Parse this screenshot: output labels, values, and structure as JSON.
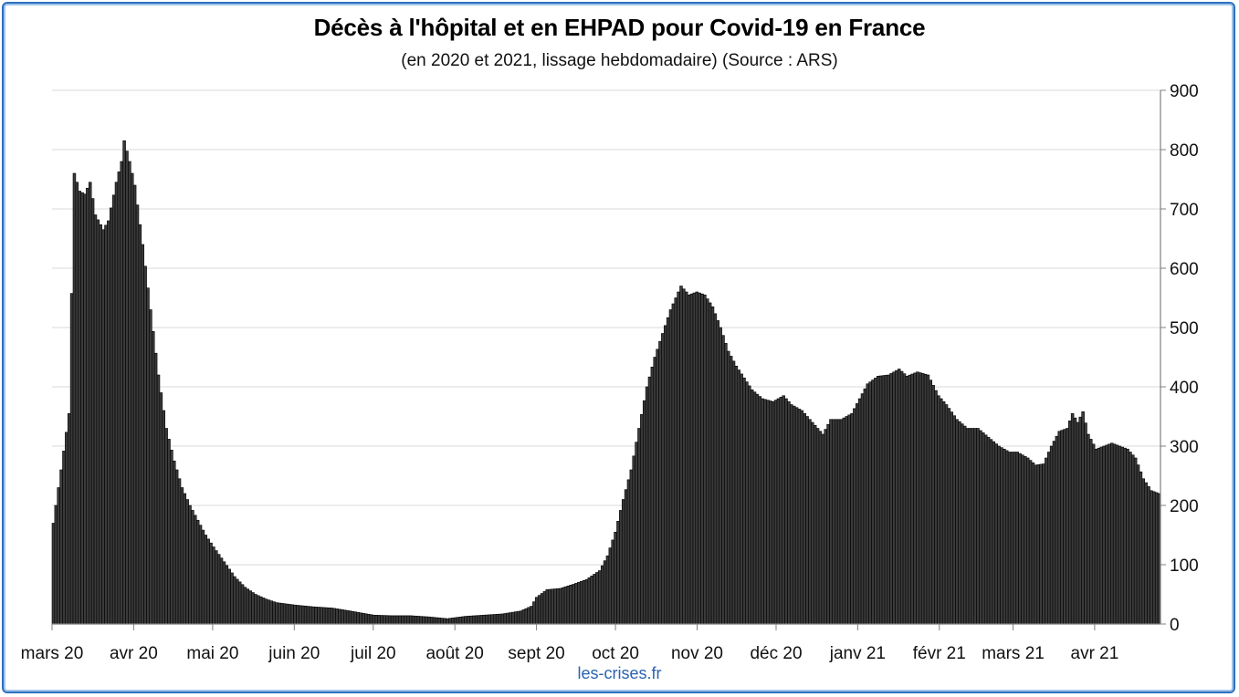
{
  "chart_data": {
    "type": "bar",
    "title": "Décès à l'hôpital et en EHPAD pour Covid-19 en France",
    "subtitle": "(en 2020 et 2021, lissage hebdomadaire) (Source : ARS)",
    "xlabel": "",
    "ylabel": "",
    "ylim": [
      0,
      900
    ],
    "yticks": [
      0,
      100,
      200,
      300,
      400,
      500,
      600,
      700,
      800,
      900
    ],
    "y_axis_side": "right",
    "grid": true,
    "legend": "none",
    "bar_color": "#3a3a3a",
    "x_start": "2020-03-01",
    "x_end": "2021-04-26",
    "xtick_dates": [
      "2020-03-01",
      "2020-04-01",
      "2020-05-01",
      "2020-06-01",
      "2020-07-01",
      "2020-08-01",
      "2020-09-01",
      "2020-10-01",
      "2020-11-01",
      "2020-12-01",
      "2021-01-01",
      "2021-02-01",
      "2021-03-01",
      "2021-04-01"
    ],
    "xtick_labels": [
      "mars 20",
      "avr 20",
      "mai 20",
      "juin 20",
      "juil 20",
      "août 20",
      "sept 20",
      "oct 20",
      "nov 20",
      "déc 20",
      "janv 21",
      "févr 21",
      "mars 21",
      "avr 21"
    ],
    "series": [
      {
        "name": "",
        "points": [
          [
            "2020-03-01",
            170
          ],
          [
            "2020-03-04",
            260
          ],
          [
            "2020-03-07",
            355
          ],
          [
            "2020-03-09",
            760
          ],
          [
            "2020-03-11",
            730
          ],
          [
            "2020-03-13",
            725
          ],
          [
            "2020-03-15",
            745
          ],
          [
            "2020-03-17",
            690
          ],
          [
            "2020-03-20",
            665
          ],
          [
            "2020-03-22",
            680
          ],
          [
            "2020-03-25",
            745
          ],
          [
            "2020-03-27",
            780
          ],
          [
            "2020-03-28",
            815
          ],
          [
            "2020-03-30",
            780
          ],
          [
            "2020-04-01",
            740
          ],
          [
            "2020-04-04",
            640
          ],
          [
            "2020-04-07",
            530
          ],
          [
            "2020-04-10",
            420
          ],
          [
            "2020-04-13",
            330
          ],
          [
            "2020-04-16",
            275
          ],
          [
            "2020-04-19",
            230
          ],
          [
            "2020-04-22",
            200
          ],
          [
            "2020-04-25",
            175
          ],
          [
            "2020-04-28",
            150
          ],
          [
            "2020-05-01",
            130
          ],
          [
            "2020-05-05",
            105
          ],
          [
            "2020-05-09",
            80
          ],
          [
            "2020-05-13",
            62
          ],
          [
            "2020-05-17",
            50
          ],
          [
            "2020-05-21",
            42
          ],
          [
            "2020-05-25",
            36
          ],
          [
            "2020-06-01",
            32
          ],
          [
            "2020-06-08",
            29
          ],
          [
            "2020-06-15",
            27
          ],
          [
            "2020-06-22",
            22
          ],
          [
            "2020-06-27",
            18
          ],
          [
            "2020-07-01",
            15
          ],
          [
            "2020-07-08",
            14
          ],
          [
            "2020-07-15",
            14
          ],
          [
            "2020-07-22",
            12
          ],
          [
            "2020-07-29",
            9
          ],
          [
            "2020-08-05",
            13
          ],
          [
            "2020-08-12",
            15
          ],
          [
            "2020-08-19",
            17
          ],
          [
            "2020-08-26",
            22
          ],
          [
            "2020-08-30",
            30
          ],
          [
            "2020-09-01",
            45
          ],
          [
            "2020-09-05",
            58
          ],
          [
            "2020-09-10",
            60
          ],
          [
            "2020-09-15",
            67
          ],
          [
            "2020-09-20",
            75
          ],
          [
            "2020-09-25",
            90
          ],
          [
            "2020-09-28",
            115
          ],
          [
            "2020-10-01",
            155
          ],
          [
            "2020-10-04",
            210
          ],
          [
            "2020-10-07",
            260
          ],
          [
            "2020-10-10",
            330
          ],
          [
            "2020-10-13",
            400
          ],
          [
            "2020-10-16",
            450
          ],
          [
            "2020-10-19",
            490
          ],
          [
            "2020-10-22",
            530
          ],
          [
            "2020-10-26",
            570
          ],
          [
            "2020-10-29",
            555
          ],
          [
            "2020-11-01",
            560
          ],
          [
            "2020-11-04",
            555
          ],
          [
            "2020-11-07",
            535
          ],
          [
            "2020-11-10",
            500
          ],
          [
            "2020-11-13",
            460
          ],
          [
            "2020-11-16",
            435
          ],
          [
            "2020-11-19",
            415
          ],
          [
            "2020-11-22",
            395
          ],
          [
            "2020-11-26",
            380
          ],
          [
            "2020-11-30",
            375
          ],
          [
            "2020-12-04",
            385
          ],
          [
            "2020-12-07",
            370
          ],
          [
            "2020-12-11",
            360
          ],
          [
            "2020-12-15",
            340
          ],
          [
            "2020-12-19",
            320
          ],
          [
            "2020-12-22",
            345
          ],
          [
            "2020-12-26",
            345
          ],
          [
            "2020-12-30",
            355
          ],
          [
            "2021-01-02",
            380
          ],
          [
            "2021-01-05",
            405
          ],
          [
            "2021-01-09",
            418
          ],
          [
            "2021-01-13",
            420
          ],
          [
            "2021-01-17",
            430
          ],
          [
            "2021-01-20",
            418
          ],
          [
            "2021-01-24",
            425
          ],
          [
            "2021-01-28",
            420
          ],
          [
            "2021-02-01",
            385
          ],
          [
            "2021-02-04",
            370
          ],
          [
            "2021-02-08",
            345
          ],
          [
            "2021-02-12",
            330
          ],
          [
            "2021-02-16",
            330
          ],
          [
            "2021-02-20",
            315
          ],
          [
            "2021-02-24",
            300
          ],
          [
            "2021-02-28",
            290
          ],
          [
            "2021-03-03",
            290
          ],
          [
            "2021-03-07",
            280
          ],
          [
            "2021-03-10",
            268
          ],
          [
            "2021-03-13",
            270
          ],
          [
            "2021-03-16",
            300
          ],
          [
            "2021-03-19",
            325
          ],
          [
            "2021-03-22",
            330
          ],
          [
            "2021-03-24",
            355
          ],
          [
            "2021-03-26",
            340
          ],
          [
            "2021-03-28",
            358
          ],
          [
            "2021-03-30",
            320
          ],
          [
            "2021-04-02",
            295
          ],
          [
            "2021-04-05",
            300
          ],
          [
            "2021-04-08",
            305
          ],
          [
            "2021-04-11",
            300
          ],
          [
            "2021-04-14",
            295
          ],
          [
            "2021-04-17",
            280
          ],
          [
            "2021-04-20",
            245
          ],
          [
            "2021-04-23",
            225
          ],
          [
            "2021-04-26",
            220
          ]
        ]
      }
    ]
  }
}
